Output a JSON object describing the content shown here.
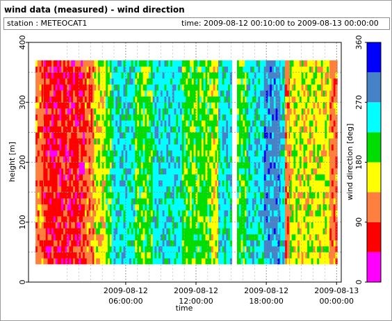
{
  "window": {
    "title": "wind data (measured) - wind direction",
    "station_text": "station : METEOCAT1",
    "time_text": "time: 2009-08-12 00:10:00 to 2009-08-13 00:00:00"
  },
  "chart_data": {
    "type": "heatmap",
    "title": "wind data (measured) - wind direction",
    "xlabel": "time",
    "ylabel": "height [m]",
    "colorbar_label": "wind direction [deg]",
    "xlim_hours": [
      -2.3,
      24.4
    ],
    "ylim": [
      0,
      400
    ],
    "y_ticks": [
      "0",
      "100",
      "200",
      "300",
      "400"
    ],
    "x_ticks": [
      {
        "line1": "2009-08-12",
        "line2": "06:00:00"
      },
      {
        "line1": "2009-08-12",
        "line2": "12:00:00"
      },
      {
        "line1": "2009-08-12",
        "line2": "18:00:00"
      },
      {
        "line1": "2009-08-13",
        "line2": "00:00:00"
      }
    ],
    "x_tick_hours": [
      6,
      12,
      18,
      24
    ],
    "grid": true,
    "colorbar_ticks": [
      "0",
      "90",
      "180",
      "270",
      "360"
    ],
    "colorbar_ticks_values": [
      0,
      90,
      180,
      270,
      360
    ],
    "color_classes": [
      {
        "from": 0,
        "to": 45,
        "color": "#ff00ff"
      },
      {
        "from": 45,
        "to": 90,
        "color": "#ff0000"
      },
      {
        "from": 90,
        "to": 135,
        "color": "#ff7f3f"
      },
      {
        "from": 135,
        "to": 180,
        "color": "#ffff00"
      },
      {
        "from": 180,
        "to": 225,
        "color": "#00dd00"
      },
      {
        "from": 225,
        "to": 270,
        "color": "#00ffff"
      },
      {
        "from": 270,
        "to": 315,
        "color": "#4682c8"
      },
      {
        "from": 315,
        "to": 360,
        "color": "#0000ff"
      }
    ],
    "height_range_m": [
      30,
      370
    ],
    "direction_segments_deg": [
      {
        "start_h": -1.7,
        "end_h": -1.0,
        "dir": 110
      },
      {
        "start_h": -1.0,
        "end_h": 2.5,
        "dir": 70
      },
      {
        "start_h": 2.5,
        "end_h": 3.3,
        "dir": 110
      },
      {
        "start_h": 3.3,
        "end_h": 4.3,
        "dir": 160
      },
      {
        "start_h": 4.3,
        "end_h": 4.8,
        "dir": 200
      },
      {
        "start_h": 4.8,
        "end_h": 6.8,
        "dir": 250
      },
      {
        "start_h": 6.8,
        "end_h": 8.3,
        "dir": 200
      },
      {
        "start_h": 8.3,
        "end_h": 10.8,
        "dir": 250
      },
      {
        "start_h": 10.8,
        "end_h": 13.3,
        "dir": 200
      },
      {
        "start_h": 13.3,
        "end_h": 13.9,
        "dir": 160
      },
      {
        "start_h": 13.9,
        "end_h": 15.0,
        "dir": 250
      },
      {
        "start_h": 15.0,
        "end_h": 16.3,
        "dir": 200
      },
      {
        "start_h": 16.3,
        "end_h": 17.8,
        "dir": 250
      },
      {
        "start_h": 17.8,
        "end_h": 19.2,
        "dir": 290
      },
      {
        "start_h": 19.2,
        "end_h": 19.6,
        "dir": 250
      },
      {
        "start_h": 19.6,
        "end_h": 20.0,
        "dir": 110
      },
      {
        "start_h": 20.0,
        "end_h": 23.4,
        "dir": 160
      },
      {
        "start_h": 23.4,
        "end_h": 24.0,
        "dir": 110
      }
    ],
    "missing_data_hours": [
      {
        "start_h": 15.0,
        "end_h": 15.4
      }
    ]
  }
}
